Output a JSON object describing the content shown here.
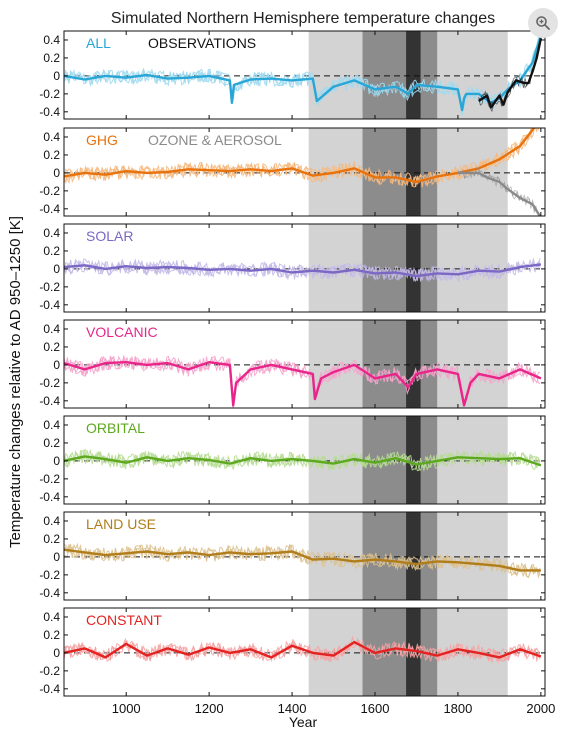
{
  "overlay": {
    "zoom_icon": "zoom-in-icon"
  },
  "chart_data": {
    "type": "line",
    "title": "Simulated Northern Hemisphere temperature changes",
    "xlabel": "Year",
    "ylabel": "Temperature changes relative to AD 950–1250  [K]",
    "xlim": [
      850,
      2010
    ],
    "ylim": [
      -0.48,
      0.5
    ],
    "xticks": [
      1000,
      1200,
      1400,
      1600,
      1800,
      2000
    ],
    "yticks": [
      0.4,
      0.2,
      0,
      -0.2,
      -0.4
    ],
    "grid": false,
    "shaded_periods": [
      {
        "start": 1440,
        "end": 1920,
        "shade": "#d3d3d3"
      },
      {
        "start": 1570,
        "end": 1750,
        "shade": "#8c8c8c"
      },
      {
        "start": 1675,
        "end": 1710,
        "shade": "#333333"
      }
    ],
    "panels": [
      {
        "label": "ALL",
        "color": "#29a6d6",
        "light_color": "#9fd9f0",
        "extra_label": "OBSERVATIONS",
        "extra_color": "#111111",
        "series": [
          {
            "years": [
              850,
              900,
              950,
              1000,
              1050,
              1100,
              1150,
              1200,
              1250,
              1255,
              1260,
              1300,
              1350,
              1400,
              1450,
              1460,
              1500,
              1550,
              1600,
              1650,
              1680,
              1700,
              1750,
              1800,
              1810,
              1815,
              1820,
              1850,
              1880,
              1900,
              1920,
              1950,
              1980,
              2000
            ],
            "values": [
              0.0,
              -0.04,
              0.0,
              -0.02,
              0.01,
              -0.03,
              -0.02,
              0.0,
              -0.05,
              -0.3,
              -0.1,
              -0.04,
              -0.03,
              -0.05,
              -0.03,
              -0.28,
              -0.12,
              -0.05,
              -0.15,
              -0.12,
              -0.2,
              -0.1,
              -0.12,
              -0.15,
              -0.38,
              -0.25,
              -0.2,
              -0.2,
              -0.3,
              -0.25,
              -0.15,
              -0.05,
              0.15,
              0.45
            ]
          },
          {
            "name": "OBSERVATIONS",
            "color": "#111111",
            "years": [
              1850,
              1870,
              1880,
              1900,
              1910,
              1920,
              1940,
              1960,
              1970,
              1980,
              1990,
              2000
            ],
            "values": [
              -0.28,
              -0.22,
              -0.35,
              -0.22,
              -0.32,
              -0.18,
              -0.05,
              -0.08,
              -0.08,
              0.05,
              0.2,
              0.42
            ]
          }
        ]
      },
      {
        "label": "GHG",
        "color": "#e8720c",
        "light_color": "#f5b97f",
        "extra_label": "OZONE & AEROSOL",
        "extra_color": "#8a8a8a",
        "series": [
          {
            "years": [
              850,
              900,
              950,
              1000,
              1050,
              1100,
              1150,
              1200,
              1250,
              1300,
              1350,
              1400,
              1450,
              1500,
              1550,
              1600,
              1650,
              1700,
              1750,
              1800,
              1850,
              1900,
              1950,
              2000
            ],
            "values": [
              -0.04,
              0.0,
              -0.02,
              0.02,
              0.0,
              0.01,
              0.04,
              0.03,
              0.02,
              0.04,
              0.02,
              0.05,
              -0.03,
              0.0,
              0.05,
              -0.05,
              -0.05,
              -0.1,
              -0.04,
              0.0,
              0.05,
              0.15,
              0.3,
              0.6
            ]
          },
          {
            "name": "OZONE & AEROSOL",
            "color": "#8a8a8a",
            "years": [
              1800,
              1850,
              1870,
              1900,
              1920,
              1950,
              1980,
              2000
            ],
            "values": [
              0.0,
              0.0,
              -0.05,
              -0.1,
              -0.18,
              -0.28,
              -0.35,
              -0.5
            ]
          }
        ]
      },
      {
        "label": "SOLAR",
        "color": "#7b68c4",
        "light_color": "#c3b9e8",
        "series": [
          {
            "years": [
              850,
              900,
              950,
              1000,
              1050,
              1100,
              1150,
              1200,
              1250,
              1300,
              1350,
              1400,
              1450,
              1500,
              1550,
              1600,
              1650,
              1700,
              1750,
              1800,
              1850,
              1900,
              1950,
              2000
            ],
            "values": [
              0.02,
              0.04,
              0.0,
              0.03,
              0.01,
              0.02,
              0.01,
              -0.01,
              0.0,
              -0.02,
              0.0,
              -0.04,
              -0.02,
              -0.04,
              -0.01,
              -0.05,
              -0.04,
              -0.08,
              -0.05,
              -0.06,
              -0.02,
              -0.03,
              0.02,
              0.05
            ]
          }
        ]
      },
      {
        "label": "VOLCANIC",
        "color": "#e8268a",
        "light_color": "#f5a3cc",
        "series": [
          {
            "years": [
              850,
              900,
              950,
              1000,
              1050,
              1100,
              1150,
              1200,
              1250,
              1258,
              1265,
              1300,
              1350,
              1400,
              1450,
              1455,
              1470,
              1500,
              1550,
              1600,
              1650,
              1680,
              1700,
              1750,
              1800,
              1815,
              1830,
              1850,
              1900,
              1950,
              2000
            ],
            "values": [
              0.02,
              -0.05,
              0.02,
              0.03,
              0.0,
              0.02,
              -0.05,
              0.03,
              0.0,
              -0.45,
              -0.2,
              -0.05,
              0.0,
              -0.05,
              -0.1,
              -0.38,
              -0.15,
              -0.08,
              0.0,
              -0.15,
              -0.1,
              -0.25,
              -0.1,
              -0.05,
              -0.1,
              -0.45,
              -0.2,
              -0.1,
              -0.15,
              -0.05,
              -0.15
            ]
          }
        ]
      },
      {
        "label": "ORBITAL",
        "color": "#5ca81e",
        "light_color": "#b6dc94",
        "series": [
          {
            "years": [
              850,
              900,
              950,
              1000,
              1050,
              1100,
              1150,
              1200,
              1250,
              1300,
              1350,
              1400,
              1450,
              1500,
              1550,
              1600,
              1650,
              1700,
              1750,
              1800,
              1850,
              1900,
              1950,
              2000
            ],
            "values": [
              0.0,
              0.05,
              0.02,
              -0.02,
              0.04,
              0.0,
              0.03,
              0.01,
              -0.03,
              0.03,
              0.0,
              0.02,
              0.0,
              -0.03,
              0.02,
              -0.02,
              0.03,
              -0.04,
              0.0,
              0.04,
              0.03,
              0.02,
              0.03,
              -0.05
            ]
          }
        ]
      },
      {
        "label": "LAND USE",
        "color": "#b07d1a",
        "light_color": "#dcc18f",
        "series": [
          {
            "years": [
              850,
              900,
              950,
              1000,
              1050,
              1100,
              1150,
              1200,
              1250,
              1300,
              1350,
              1400,
              1450,
              1500,
              1550,
              1600,
              1650,
              1700,
              1750,
              1800,
              1850,
              1900,
              1950,
              2000
            ],
            "values": [
              0.08,
              0.05,
              0.02,
              0.04,
              0.06,
              0.03,
              0.05,
              0.02,
              0.05,
              0.03,
              0.04,
              0.06,
              -0.03,
              -0.02,
              -0.05,
              -0.03,
              -0.05,
              -0.08,
              -0.05,
              -0.06,
              -0.08,
              -0.1,
              -0.15,
              -0.15
            ]
          }
        ]
      },
      {
        "label": "CONSTANT",
        "color": "#e32222",
        "light_color": "#f5a3a3",
        "series": [
          {
            "years": [
              850,
              900,
              950,
              1000,
              1050,
              1100,
              1150,
              1200,
              1250,
              1300,
              1350,
              1400,
              1450,
              1500,
              1550,
              1600,
              1650,
              1700,
              1750,
              1800,
              1850,
              1900,
              1950,
              2000
            ],
            "values": [
              0.0,
              0.05,
              -0.05,
              0.1,
              -0.03,
              0.05,
              -0.02,
              0.06,
              0.0,
              0.04,
              -0.05,
              0.08,
              0.0,
              -0.03,
              0.12,
              0.0,
              0.05,
              0.02,
              -0.03,
              0.04,
              0.0,
              -0.05,
              0.04,
              -0.04
            ]
          }
        ]
      }
    ]
  }
}
